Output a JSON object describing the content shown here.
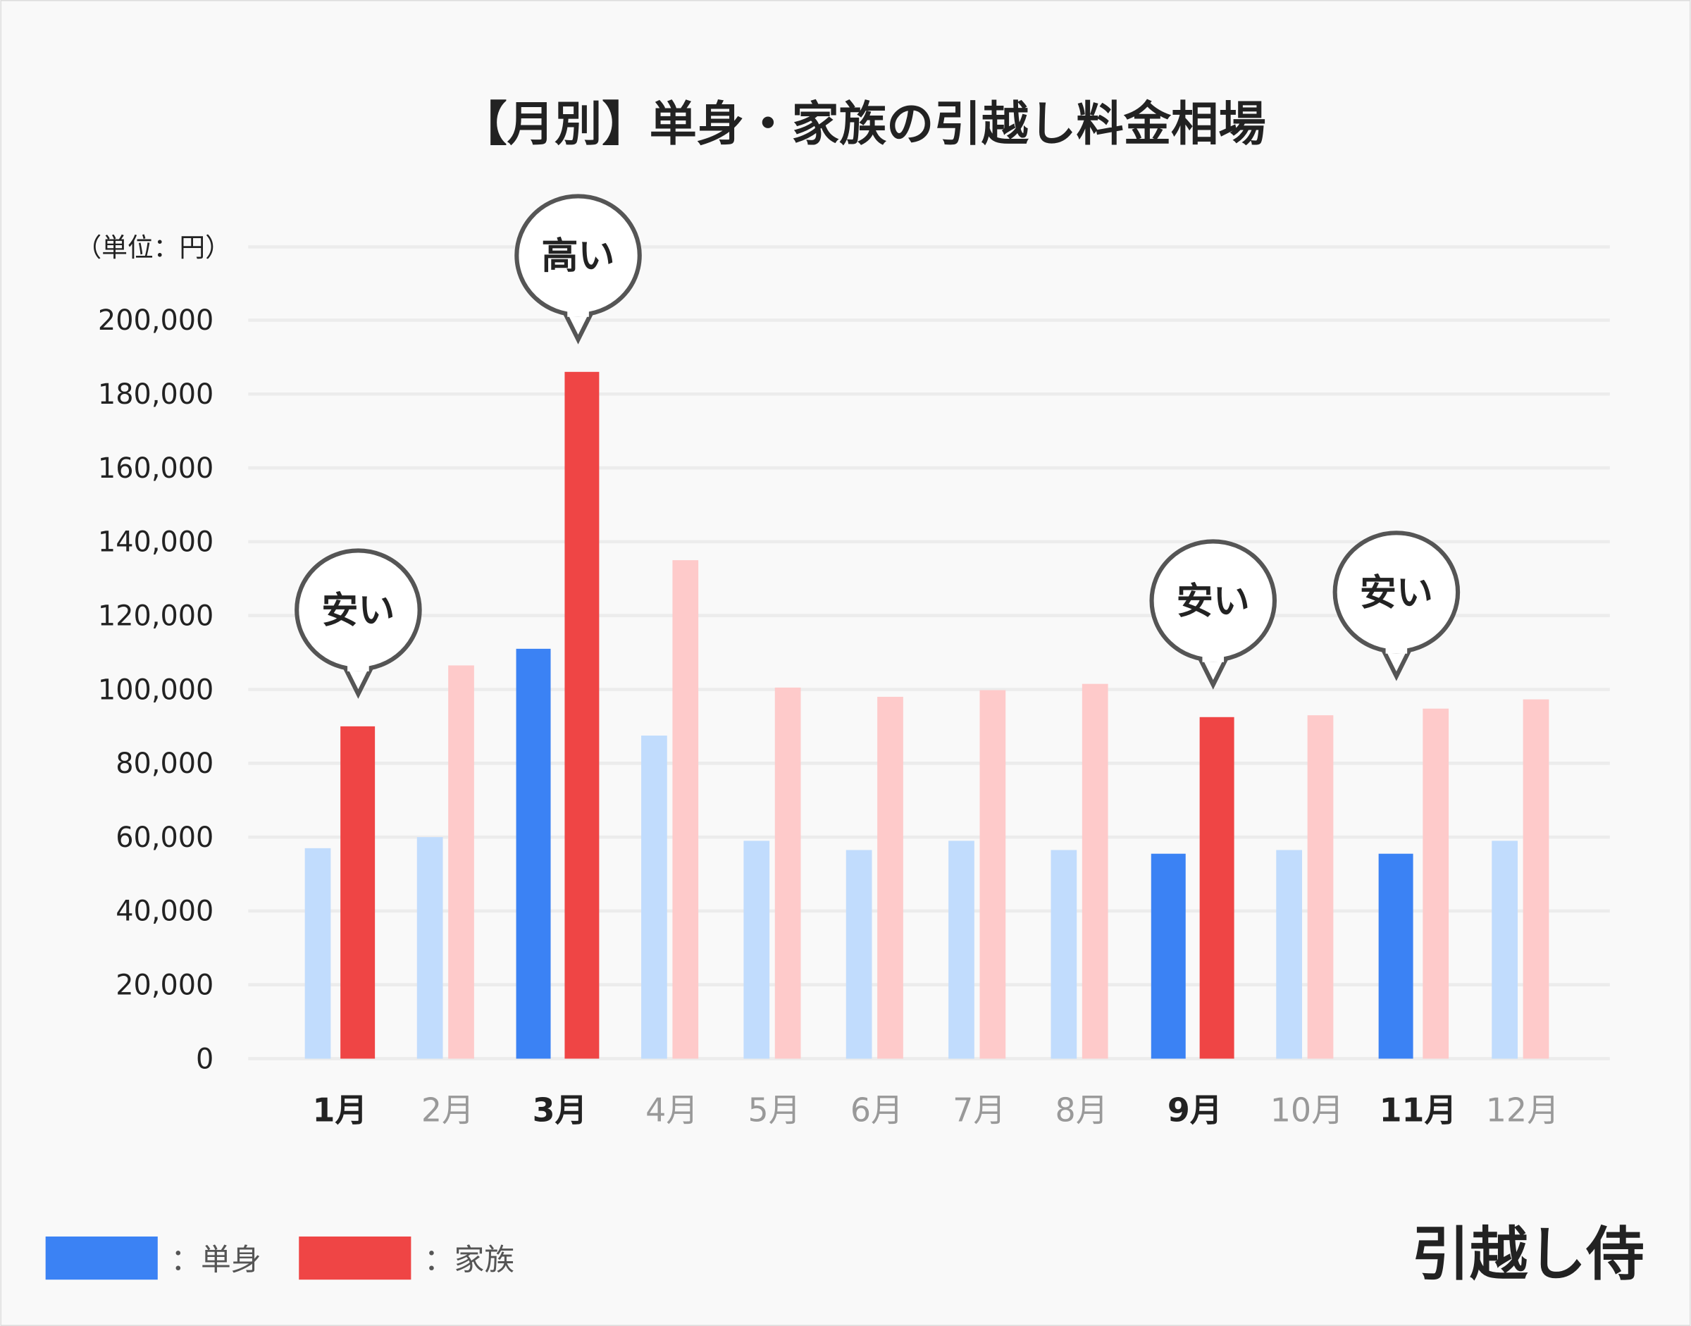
{
  "chart_data": {
    "type": "bar",
    "title": "【月別】単身・家族の引越し料金相場",
    "unit_label": "（単位：円）",
    "categories": [
      "1月",
      "2月",
      "3月",
      "4月",
      "5月",
      "6月",
      "7月",
      "8月",
      "9月",
      "10月",
      "11月",
      "12月"
    ],
    "ylim": [
      0,
      200000
    ],
    "yticks": [
      "0",
      "20,000",
      "40,000",
      "60,000",
      "80,000",
      "100,000",
      "120,000",
      "140,000",
      "160,000",
      "180,000",
      "200,000"
    ],
    "grid": true,
    "series": [
      {
        "name": "単身",
        "color": "#3b82f4",
        "light_color": "#c1dcfd",
        "values": [
          57000,
          60000,
          111000,
          87500,
          59000,
          56500,
          59000,
          56500,
          55500,
          56500,
          55500,
          59000
        ],
        "highlighted": [
          false,
          false,
          true,
          false,
          false,
          false,
          false,
          false,
          true,
          false,
          true,
          false
        ]
      },
      {
        "name": "家族",
        "color": "#ef4545",
        "light_color": "#fecaca",
        "values": [
          90000,
          106500,
          186000,
          135000,
          100500,
          98000,
          99800,
          101500,
          92500,
          93000,
          94800,
          97300
        ],
        "highlighted": [
          true,
          false,
          true,
          false,
          false,
          false,
          false,
          false,
          true,
          false,
          false,
          false
        ]
      }
    ],
    "highlighted_months": [
      "1月",
      "3月",
      "9月",
      "11月"
    ],
    "annotations": [
      {
        "month": "1月",
        "text": "安い"
      },
      {
        "month": "3月",
        "text": "高い"
      },
      {
        "month": "9月",
        "text": "安い"
      },
      {
        "month": "11月",
        "text": "安い"
      }
    ],
    "legend": {
      "placement": "bottom-left",
      "items": [
        "：単身",
        "：家族"
      ]
    }
  },
  "brand": "引越し侍"
}
